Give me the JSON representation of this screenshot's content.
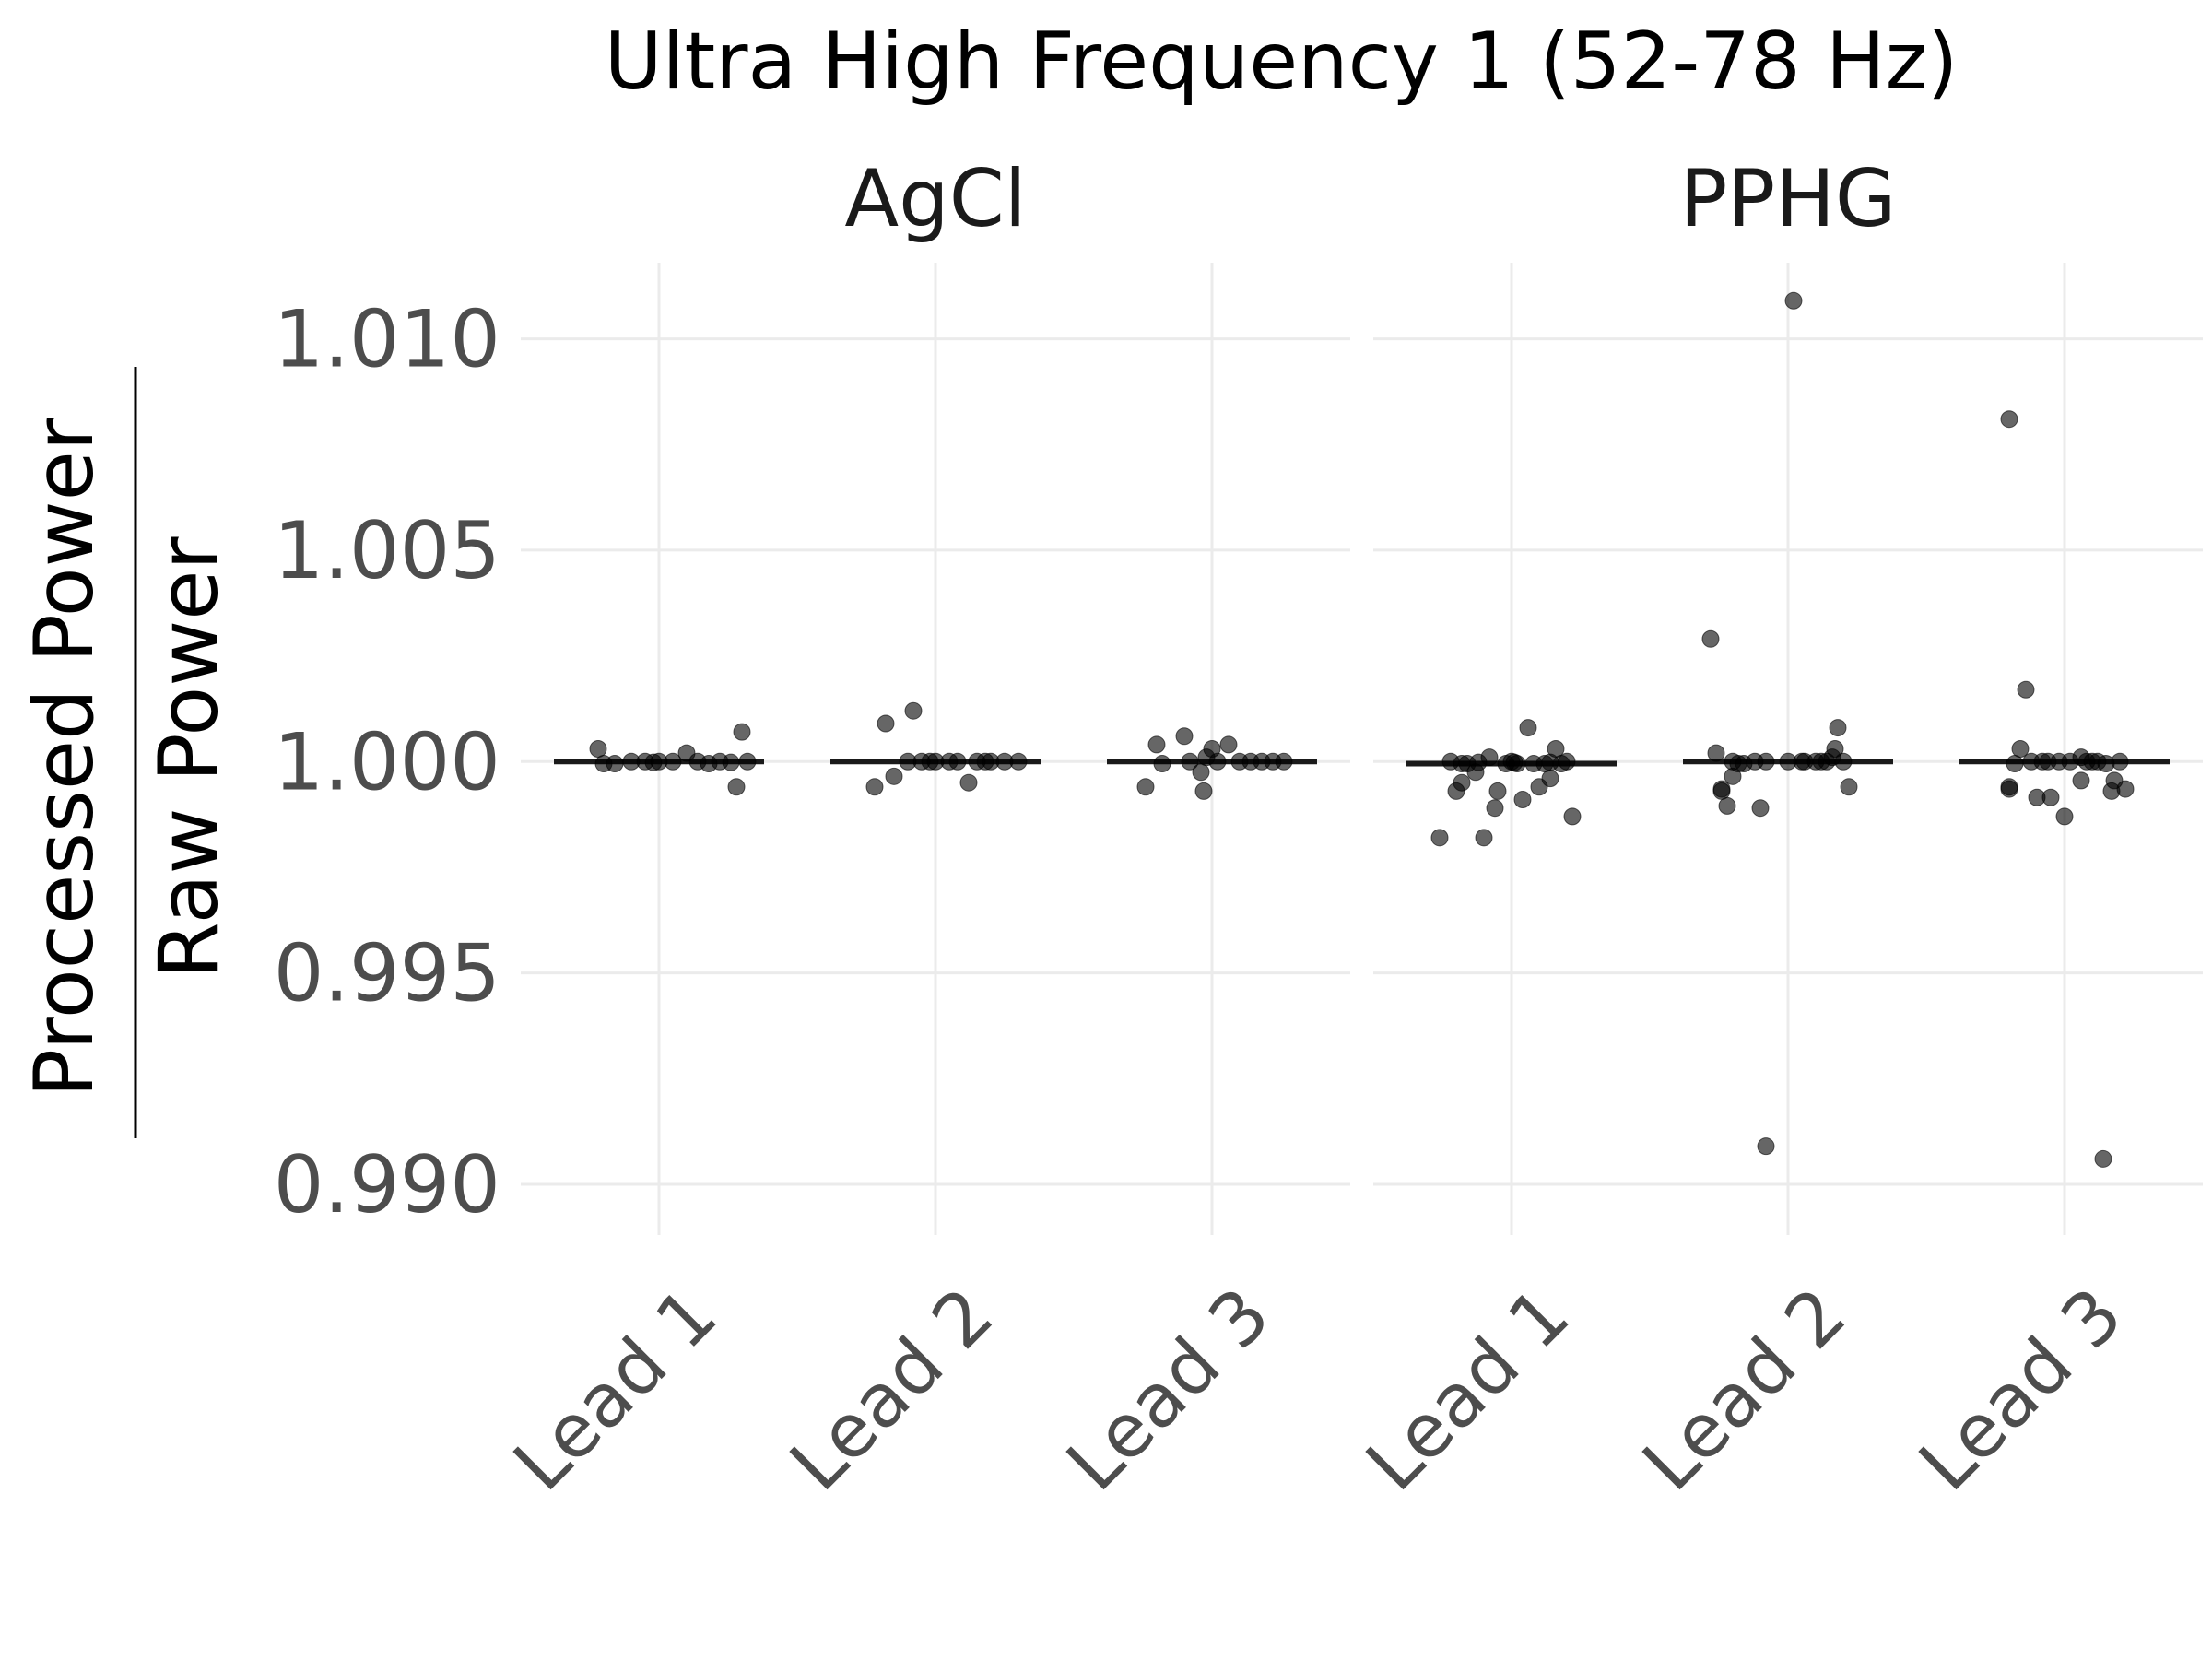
{
  "chart_data": {
    "type": "scatter",
    "title": "Ultra High Frequency 1 (52-78 Hz)",
    "ylabel": {
      "numerator": "Processed Power",
      "denominator": "Raw Power"
    },
    "ylim": [
      0.9888,
      1.0118
    ],
    "yticks": [
      0.99,
      0.995,
      1.0,
      1.005,
      1.01
    ],
    "ytick_labels": [
      "0.990",
      "0.995",
      "1.000",
      "1.005",
      "1.010"
    ],
    "categories": [
      "Lead 1",
      "Lead 2",
      "Lead 3"
    ],
    "grid": true,
    "facets": [
      {
        "label": "AgCl",
        "groups": [
          {
            "category": "Lead 1",
            "median": 1.0,
            "points": [
              [
                -0.22,
                1.0003
              ],
              [
                -0.2,
                0.99995
              ],
              [
                -0.16,
                0.99995
              ],
              [
                -0.1,
                1.0
              ],
              [
                -0.05,
                1.0
              ],
              [
                -0.02,
                0.99998
              ],
              [
                0.0,
                1.0
              ],
              [
                0.05,
                1.0
              ],
              [
                0.1,
                1.0002
              ],
              [
                0.14,
                1.0
              ],
              [
                0.18,
                0.99995
              ],
              [
                0.22,
                1.0
              ],
              [
                0.26,
                0.99998
              ],
              [
                0.3,
                1.0007
              ],
              [
                0.28,
                0.9994
              ],
              [
                0.32,
                1.0
              ]
            ]
          },
          {
            "category": "Lead 2",
            "median": 1.0,
            "points": [
              [
                -0.22,
                0.9994
              ],
              [
                -0.18,
                1.0009
              ],
              [
                -0.15,
                0.99965
              ],
              [
                -0.1,
                1.0
              ],
              [
                -0.05,
                1.0
              ],
              [
                -0.02,
                1.0
              ],
              [
                0.0,
                1.0
              ],
              [
                0.05,
                1.0
              ],
              [
                0.08,
                1.0
              ],
              [
                0.12,
                0.9995
              ],
              [
                0.15,
                1.0
              ],
              [
                0.2,
                1.0
              ],
              [
                0.25,
                1.0
              ],
              [
                0.3,
                1.0
              ],
              [
                -0.08,
                1.0012
              ],
              [
                0.18,
                1.0
              ]
            ]
          },
          {
            "category": "Lead 3",
            "median": 1.0,
            "points": [
              [
                -0.24,
                0.9994
              ],
              [
                -0.2,
                1.0004
              ],
              [
                -0.18,
                0.99995
              ],
              [
                -0.1,
                1.0006
              ],
              [
                -0.08,
                1.0
              ],
              [
                -0.04,
                0.99975
              ],
              [
                -0.02,
                1.0001
              ],
              [
                0.0,
                1.0003
              ],
              [
                0.02,
                1.0
              ],
              [
                0.06,
                1.0004
              ],
              [
                0.1,
                1.0
              ],
              [
                0.14,
                1.0
              ],
              [
                0.18,
                1.0
              ],
              [
                0.22,
                1.0
              ],
              [
                0.26,
                1.0
              ],
              [
                -0.03,
                0.9993
              ]
            ]
          }
        ]
      },
      {
        "label": "PPHG",
        "groups": [
          {
            "category": "Lead 1",
            "median": 0.99995,
            "points": [
              [
                -0.26,
                0.9982
              ],
              [
                -0.2,
                0.9993
              ],
              [
                -0.18,
                0.9995
              ],
              [
                -0.16,
                0.99995
              ],
              [
                -0.13,
                0.99975
              ],
              [
                -0.1,
                0.9982
              ],
              [
                -0.06,
                0.9989
              ],
              [
                -0.05,
                0.9993
              ],
              [
                -0.02,
                0.99995
              ],
              [
                0.0,
                1.0
              ],
              [
                0.02,
                0.99995
              ],
              [
                0.04,
                0.9991
              ],
              [
                0.06,
                1.0008
              ],
              [
                0.08,
                0.99995
              ],
              [
                0.1,
                0.9994
              ],
              [
                0.12,
                0.99995
              ],
              [
                0.14,
                0.9996
              ],
              [
                0.16,
                1.0003
              ],
              [
                0.18,
                0.99995
              ],
              [
                0.2,
                1.0
              ],
              [
                0.22,
                0.9987
              ],
              [
                -0.22,
                1.0
              ],
              [
                -0.18,
                0.99995
              ],
              [
                -0.12,
                0.99998
              ],
              [
                -0.08,
                1.0001
              ],
              [
                0.01,
                0.99998
              ],
              [
                0.14,
                0.99998
              ]
            ]
          },
          {
            "category": "Lead 2",
            "median": 1.0,
            "points": [
              [
                -0.28,
                1.0029
              ],
              [
                -0.26,
                1.0002
              ],
              [
                -0.24,
                0.99935
              ],
              [
                -0.22,
                0.99895
              ],
              [
                -0.2,
                1.0
              ],
              [
                -0.18,
                0.99995
              ],
              [
                -0.16,
                0.99995
              ],
              [
                -0.12,
                1.0
              ],
              [
                -0.1,
                0.9989
              ],
              [
                -0.08,
                1.0
              ],
              [
                -0.08,
                0.9909
              ],
              [
                0.0,
                1.0
              ],
              [
                0.02,
                1.0109
              ],
              [
                0.05,
                1.0
              ],
              [
                0.1,
                1.0
              ],
              [
                0.14,
                1.0
              ],
              [
                0.16,
                1.0001
              ],
              [
                0.17,
                1.0003
              ],
              [
                0.18,
                1.0008
              ],
              [
                0.2,
                1.0
              ],
              [
                0.22,
                0.9994
              ],
              [
                -0.24,
                0.9993
              ],
              [
                -0.2,
                0.99965
              ],
              [
                0.12,
                1.0
              ],
              [
                0.06,
                1.0
              ]
            ]
          },
          {
            "category": "Lead 3",
            "median": 1.0,
            "points": [
              [
                -0.2,
                1.0081
              ],
              [
                -0.2,
                0.9994
              ],
              [
                -0.18,
                0.99995
              ],
              [
                -0.16,
                1.0003
              ],
              [
                -0.14,
                1.0017
              ],
              [
                -0.12,
                1.0
              ],
              [
                -0.1,
                0.99915
              ],
              [
                -0.08,
                1.0
              ],
              [
                -0.05,
                0.99915
              ],
              [
                -0.02,
                1.0
              ],
              [
                0.0,
                0.9987
              ],
              [
                0.02,
                1.0
              ],
              [
                0.06,
                1.0001
              ],
              [
                0.06,
                0.99955
              ],
              [
                0.08,
                1.0
              ],
              [
                0.1,
                1.0
              ],
              [
                0.14,
                0.9906
              ],
              [
                0.15,
                0.99995
              ],
              [
                0.17,
                0.9993
              ],
              [
                0.18,
                0.99955
              ],
              [
                0.2,
                1.0
              ],
              [
                0.22,
                0.99935
              ],
              [
                -0.2,
                0.99935
              ],
              [
                -0.06,
                1.0
              ],
              [
                0.12,
                1.0
              ]
            ]
          }
        ]
      }
    ]
  }
}
